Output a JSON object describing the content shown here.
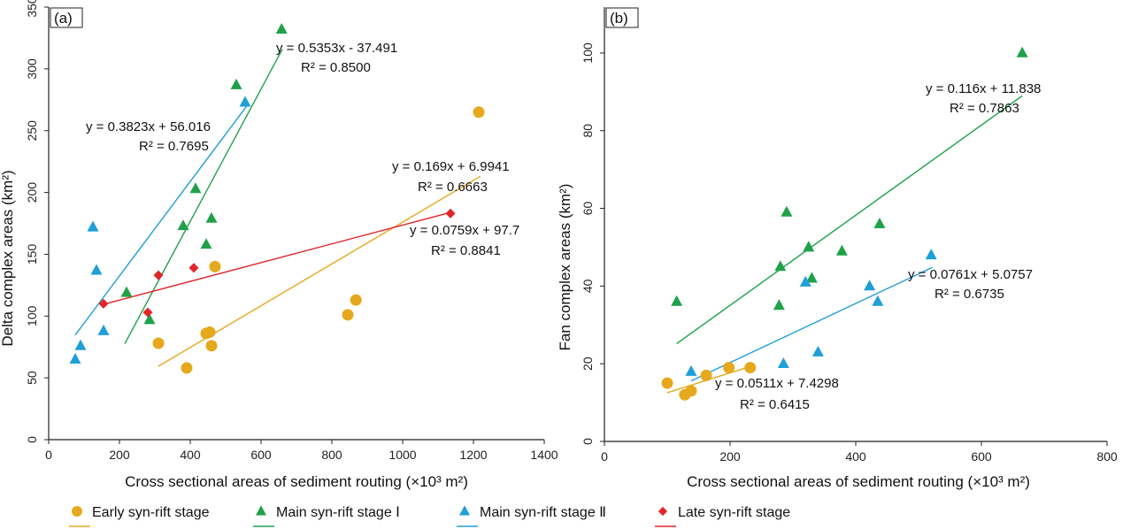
{
  "chart_data": [
    {
      "type": "scatter",
      "panel_label": "(a)",
      "xlabel": "Cross sectional areas of sediment routing (×10³ m²)",
      "ylabel": "Delta complex areas (km²)",
      "xlim": [
        0,
        1400
      ],
      "ylim": [
        0,
        350
      ],
      "xticks": [
        "0",
        "200",
        "400",
        "600",
        "800",
        "1000",
        "1200",
        "1400"
      ],
      "yticks": [
        "0",
        "50",
        "100",
        "150",
        "200",
        "250",
        "300",
        "350"
      ],
      "series": [
        {
          "name": "Early syn-rift stage",
          "color": "#e6a81d",
          "marker": "circle",
          "points": [
            [
              310,
              78
            ],
            [
              390,
              58
            ],
            [
              445,
              86
            ],
            [
              455,
              87
            ],
            [
              460,
              76
            ],
            [
              470,
              140
            ],
            [
              845,
              101
            ],
            [
              868,
              113
            ],
            [
              1215,
              265
            ]
          ],
          "fit": {
            "x": [
              310,
              1220
            ],
            "equation": "y = 0.169x + 6.9941",
            "r2": "R² = 0.6663"
          }
        },
        {
          "name": "Main syn-rift stage Ⅰ",
          "color": "#1fa14a",
          "marker": "triangle",
          "points": [
            [
              220,
              119
            ],
            [
              285,
              97
            ],
            [
              380,
              173
            ],
            [
              415,
              203
            ],
            [
              445,
              158
            ],
            [
              460,
              179
            ],
            [
              530,
              287
            ],
            [
              658,
              332
            ]
          ],
          "fit": {
            "x": [
              215,
              660
            ],
            "equation": "y = 0.5353x - 37.491",
            "r2": "R² = 0.8500"
          }
        },
        {
          "name": "Main syn-rift stage Ⅱ",
          "color": "#1e9fd8",
          "marker": "triangle",
          "points": [
            [
              75,
              65
            ],
            [
              90,
              76
            ],
            [
              125,
              172
            ],
            [
              135,
              137
            ],
            [
              155,
              88
            ],
            [
              555,
              273
            ]
          ],
          "fit": {
            "x": [
              75,
              560
            ],
            "equation": "y = 0.3823x + 56.016",
            "r2": "R² = 0.7695"
          }
        },
        {
          "name": "Late syn-rift stage",
          "color": "#e0262b",
          "marker": "diamond",
          "points": [
            [
              155,
              110
            ],
            [
              280,
              103
            ],
            [
              310,
              133
            ],
            [
              410,
              139
            ],
            [
              1135,
              183
            ]
          ],
          "fit": {
            "x": [
              150,
              1140
            ],
            "equation": "y = 0.0759x + 97.7",
            "r2": "R² = 0.8841"
          }
        }
      ]
    },
    {
      "type": "scatter",
      "panel_label": "(b)",
      "xlabel": "Cross sectional areas of sediment routing (×10³ m²)",
      "ylabel": "Fan complex areas (km²)",
      "xlim": [
        0,
        800
      ],
      "ylim": [
        0,
        110
      ],
      "xticks": [
        "0",
        "200",
        "400",
        "600",
        "800"
      ],
      "yticks": [
        "0",
        "20",
        "40",
        "60",
        "80",
        "100"
      ],
      "series": [
        {
          "name": "Early syn-rift stage",
          "color": "#e6a81d",
          "marker": "circle",
          "points": [
            [
              100,
              15
            ],
            [
              128,
              12
            ],
            [
              138,
              13
            ],
            [
              162,
              17
            ],
            [
              198,
              19
            ],
            [
              232,
              19
            ]
          ],
          "fit": {
            "x": [
              100,
              235
            ],
            "equation": "y = 0.0511x + 7.4298",
            "r2": "R² = 0.6415"
          }
        },
        {
          "name": "Main syn-rift stage Ⅰ",
          "color": "#1fa14a",
          "marker": "triangle",
          "points": [
            [
              115,
              36
            ],
            [
              278,
              35
            ],
            [
              280,
              45
            ],
            [
              290,
              59
            ],
            [
              325,
              50
            ],
            [
              330,
              42
            ],
            [
              378,
              49
            ],
            [
              438,
              56
            ],
            [
              665,
              100
            ]
          ],
          "fit": {
            "x": [
              115,
              665
            ],
            "equation": "y = 0.116x + 11.838",
            "r2": "R² = 0.7863"
          }
        },
        {
          "name": "Main syn-rift stage Ⅱ",
          "color": "#1e9fd8",
          "marker": "triangle",
          "points": [
            [
              138,
              18
            ],
            [
              285,
              20
            ],
            [
              320,
              41
            ],
            [
              340,
              23
            ],
            [
              422,
              40
            ],
            [
              435,
              36
            ],
            [
              520,
              48
            ]
          ],
          "fit": {
            "x": [
              138,
              522
            ],
            "equation": "y = 0.0761x + 5.0757",
            "r2": "R² = 0.6735"
          }
        }
      ]
    }
  ],
  "legend": [
    {
      "label": "Early syn-rift stage",
      "color": "#e6a81d",
      "marker": "circle"
    },
    {
      "label": "Main syn-rift stage Ⅰ",
      "color": "#1fa14a",
      "marker": "triangle"
    },
    {
      "label": "Main syn-rift stage Ⅱ",
      "color": "#1e9fd8",
      "marker": "triangle"
    },
    {
      "label": "Late syn-rift stage",
      "color": "#e0262b",
      "marker": "diamond"
    }
  ]
}
